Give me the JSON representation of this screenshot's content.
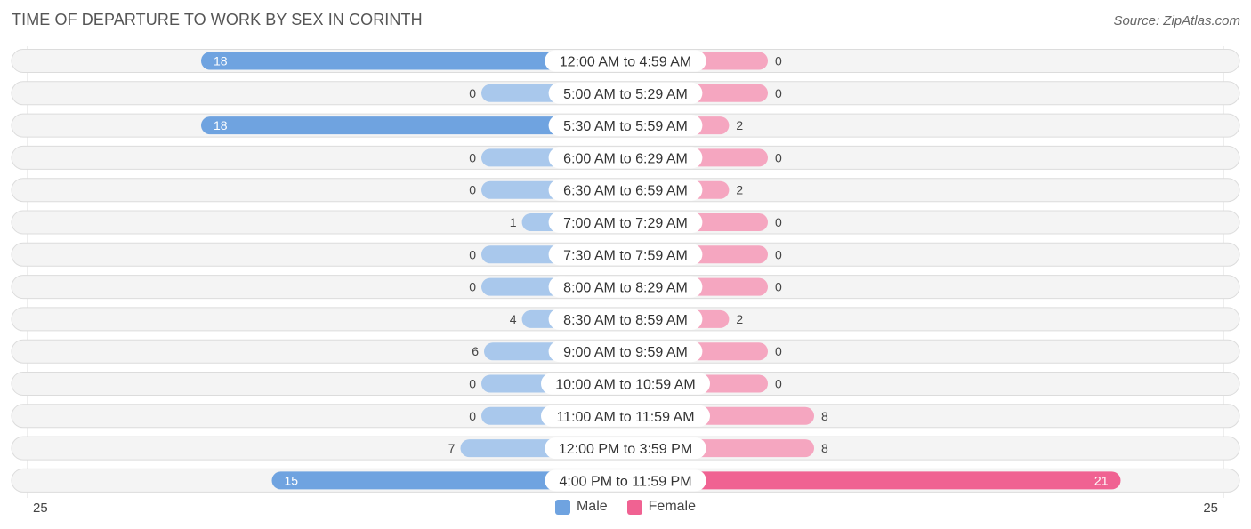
{
  "title": "TIME OF DEPARTURE TO WORK BY SEX IN CORINTH",
  "source": "Source: ZipAtlas.com",
  "colors": {
    "male": "#6fa3e0",
    "male_light": "#a9c8ec",
    "female": "#f06292",
    "female_light": "#f5a6c0"
  },
  "chart_data": {
    "type": "bar",
    "orientation": "horizontal-diverging",
    "categories": [
      "12:00 AM to 4:59 AM",
      "5:00 AM to 5:29 AM",
      "5:30 AM to 5:59 AM",
      "6:00 AM to 6:29 AM",
      "6:30 AM to 6:59 AM",
      "7:00 AM to 7:29 AM",
      "7:30 AM to 7:59 AM",
      "8:00 AM to 8:29 AM",
      "8:30 AM to 8:59 AM",
      "9:00 AM to 9:59 AM",
      "10:00 AM to 10:59 AM",
      "11:00 AM to 11:59 AM",
      "12:00 PM to 3:59 PM",
      "4:00 PM to 11:59 PM"
    ],
    "series": [
      {
        "name": "Male",
        "values": [
          18,
          0,
          18,
          0,
          0,
          1,
          0,
          0,
          4,
          6,
          0,
          0,
          7,
          15
        ]
      },
      {
        "name": "Female",
        "values": [
          0,
          0,
          2,
          0,
          2,
          0,
          0,
          0,
          2,
          0,
          0,
          8,
          8,
          21
        ]
      }
    ],
    "axis_min_label": "25",
    "axis_max_label": "25",
    "xlim": [
      -25,
      25
    ],
    "legend": [
      "Male",
      "Female"
    ],
    "legend_position": "bottom-center"
  }
}
